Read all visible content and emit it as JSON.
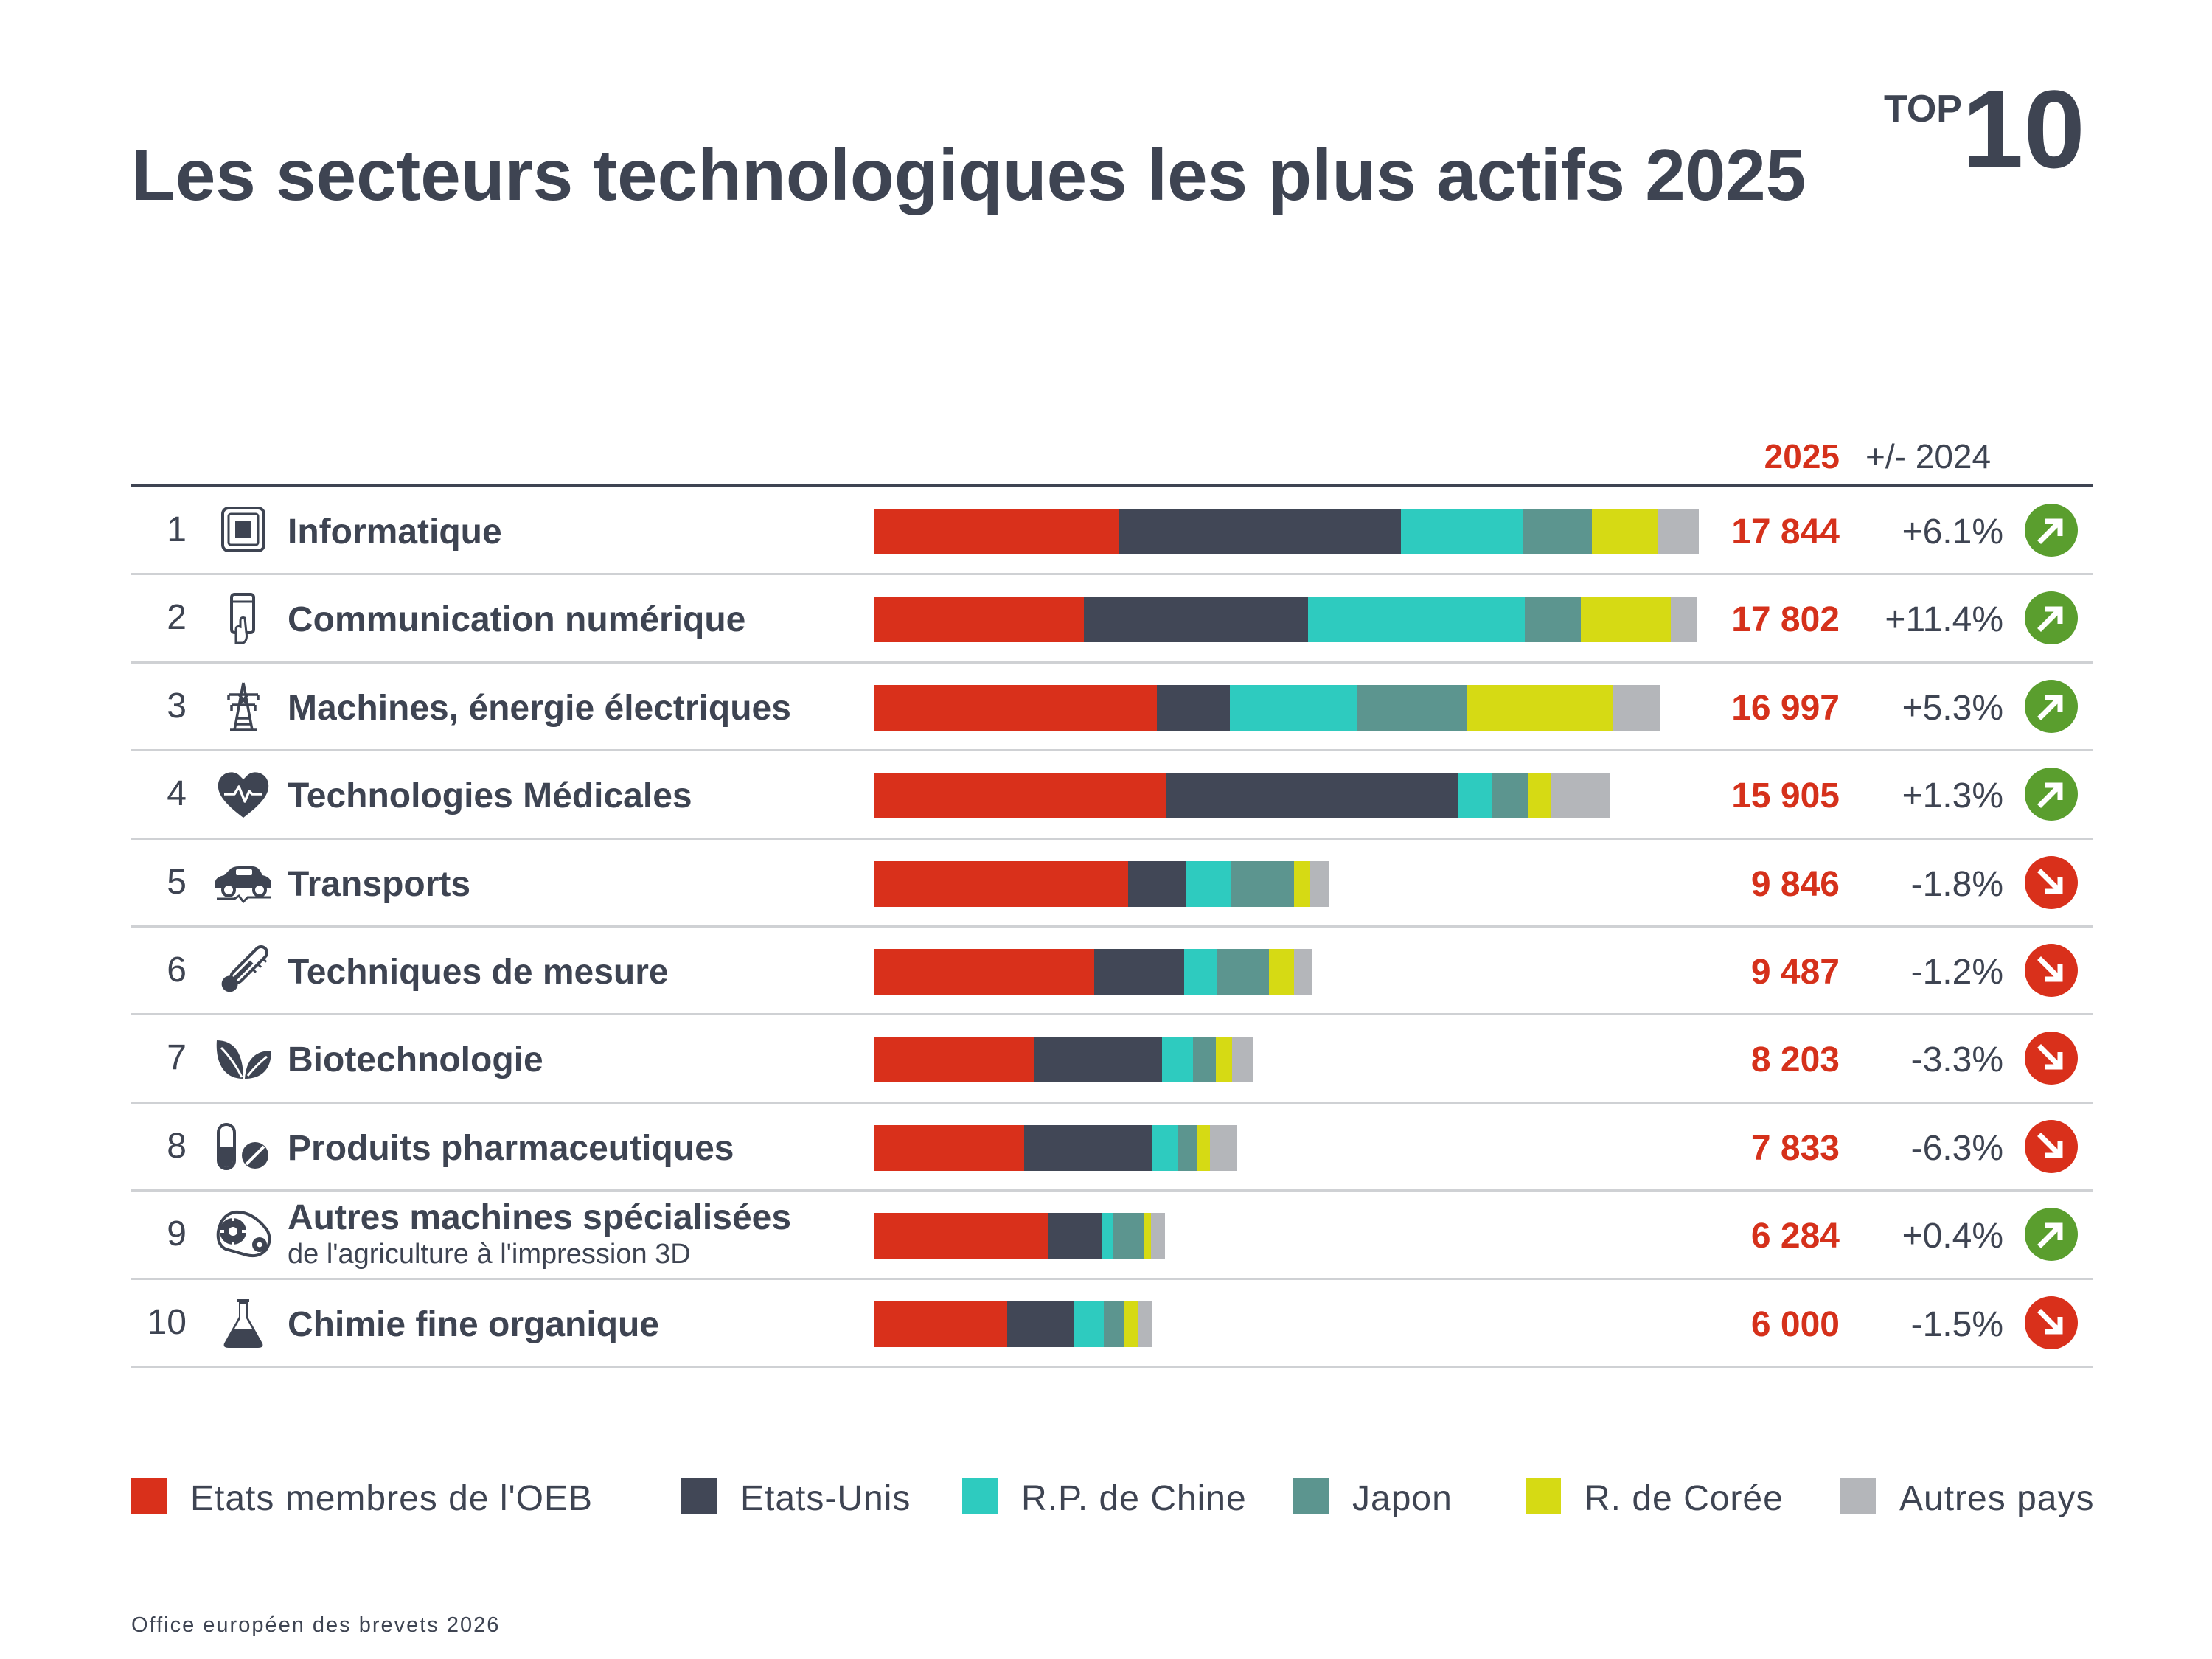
{
  "header": {
    "title": "Les secteurs technologiques les plus actifs 2025",
    "badge_prefix": "TOP",
    "badge_number": "10"
  },
  "columns": {
    "year": "2025",
    "change": "+/- 2024"
  },
  "colors": {
    "Etats membres de l'OEB": "#d9301b",
    "Etats-Unis": "#414756",
    "R.P. de Chine": "#2ecbbf",
    "Japon": "#5c958f",
    "R. de Corée": "#d6da14",
    "Autres pays": "#b4b6ba",
    "up": "#5a9e2e",
    "down": "#d9301b"
  },
  "rows": [
    {
      "rank": "1",
      "label": "Informatique",
      "sublabel": "",
      "value_text": "17 844",
      "change": "+6.1%",
      "trend": "up",
      "icon": "chip-icon"
    },
    {
      "rank": "2",
      "label": "Communication numérique",
      "sublabel": "",
      "value_text": "17 802",
      "change": "+11.4%",
      "trend": "up",
      "icon": "smartphone-icon"
    },
    {
      "rank": "3",
      "label": "Machines, énergie électriques",
      "sublabel": "",
      "value_text": "16 997",
      "change": "+5.3%",
      "trend": "up",
      "icon": "power-pylon-icon"
    },
    {
      "rank": "4",
      "label": "Technologies Médicales",
      "sublabel": "",
      "value_text": "15 905",
      "change": "+1.3%",
      "trend": "up",
      "icon": "heart-pulse-icon"
    },
    {
      "rank": "5",
      "label": "Transports",
      "sublabel": "",
      "value_text": "9 846",
      "change": "-1.8%",
      "trend": "down",
      "icon": "electric-car-icon"
    },
    {
      "rank": "6",
      "label": "Techniques de mesure",
      "sublabel": "",
      "value_text": "9 487",
      "change": "-1.2%",
      "trend": "down",
      "icon": "thermometer-icon"
    },
    {
      "rank": "7",
      "label": "Biotechnologie",
      "sublabel": "",
      "value_text": "8 203",
      "change": "-3.3%",
      "trend": "down",
      "icon": "leaves-icon"
    },
    {
      "rank": "8",
      "label": "Produits pharmaceutiques",
      "sublabel": "",
      "value_text": "7 833",
      "change": "-6.3%",
      "trend": "down",
      "icon": "pills-icon"
    },
    {
      "rank": "9",
      "label": "Autres machines spécialisées",
      "sublabel": "de l'agriculture à l'impression 3D",
      "value_text": "6 284",
      "change": "+0.4%",
      "trend": "up",
      "icon": "gear-belt-icon"
    },
    {
      "rank": "10",
      "label": "Chimie fine organique",
      "sublabel": "",
      "value_text": "6 000",
      "change": "-1.5%",
      "trend": "down",
      "icon": "flask-icon"
    }
  ],
  "chart_data": {
    "type": "bar",
    "stacked": true,
    "orientation": "horizontal",
    "title": "Les secteurs technologiques les plus actifs 2025",
    "categories": [
      "Informatique",
      "Communication numérique",
      "Machines, énergie électriques",
      "Technologies Médicales",
      "Transports",
      "Techniques de mesure",
      "Biotechnologie",
      "Produits pharmaceutiques",
      "Autres machines spécialisées",
      "Chimie fine organique"
    ],
    "totals": [
      17844,
      17802,
      16997,
      15905,
      9846,
      9487,
      8203,
      7833,
      6284,
      6000
    ],
    "change_vs_2024_pct": [
      6.1,
      11.4,
      5.3,
      1.3,
      -1.8,
      -1.2,
      -3.3,
      -6.3,
      0.4,
      -1.5
    ],
    "series": [
      {
        "name": "Etats membres de l'OEB",
        "values": [
          5290,
          4540,
          6110,
          6320,
          5490,
          4750,
          3450,
          3240,
          3750,
          2880
        ]
      },
      {
        "name": "Etats-Unis",
        "values": [
          6100,
          4840,
          1590,
          6320,
          1260,
          1950,
          2780,
          2770,
          1170,
          1450
        ]
      },
      {
        "name": "R.P. de Chine",
        "values": [
          2650,
          4700,
          2750,
          740,
          960,
          720,
          670,
          560,
          230,
          630
        ]
      },
      {
        "name": "Japon",
        "values": [
          1490,
          1210,
          2370,
          770,
          1370,
          1120,
          490,
          400,
          680,
          440
        ]
      },
      {
        "name": "R. de Corée",
        "values": [
          1420,
          1950,
          3170,
          500,
          350,
          540,
          350,
          290,
          150,
          320
        ]
      },
      {
        "name": "Autres pays",
        "values": [
          894,
          562,
          1007,
          1255,
          416,
          407,
          463,
          573,
          304,
          280
        ]
      }
    ],
    "legend_position": "bottom",
    "grid": false
  },
  "legend": [
    {
      "label": "Etats membres de l'OEB"
    },
    {
      "label": "Etats-Unis"
    },
    {
      "label": "R.P. de Chine"
    },
    {
      "label": "Japon"
    },
    {
      "label": "R. de Corée"
    },
    {
      "label": "Autres pays"
    }
  ],
  "footer": {
    "source": "Office européen des brevets 2026"
  }
}
